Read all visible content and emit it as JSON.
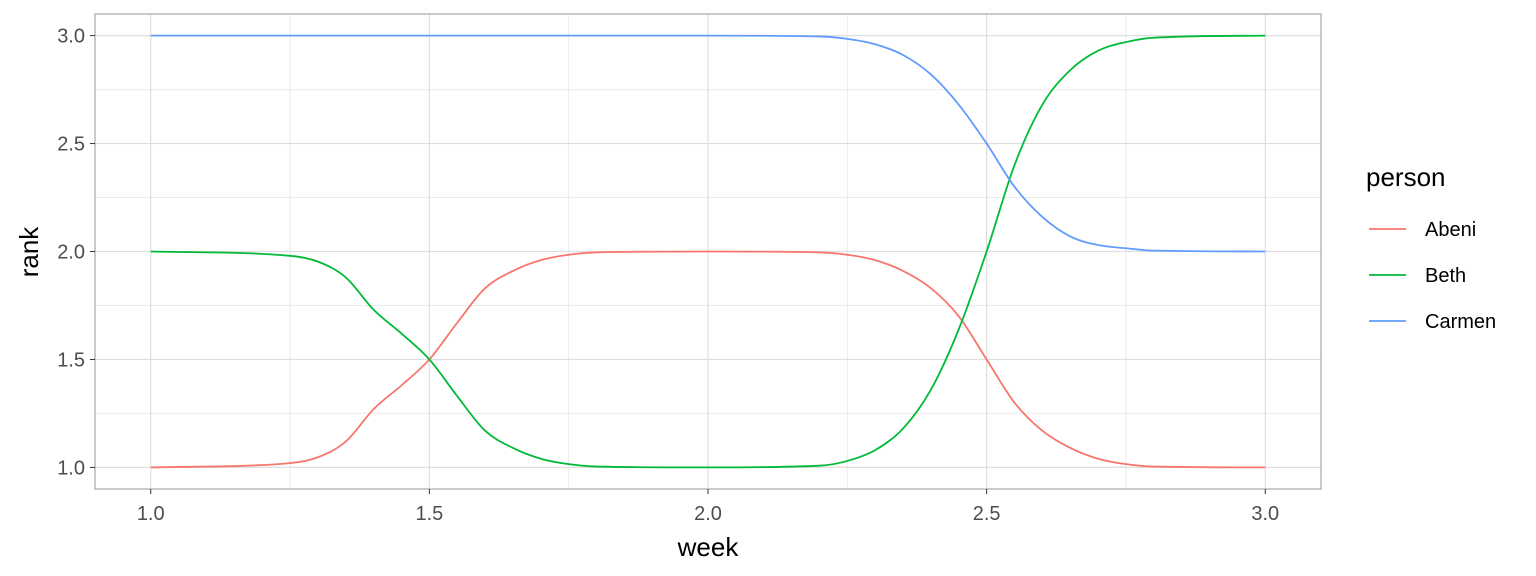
{
  "chart_data": {
    "type": "line",
    "title": "",
    "xlabel": "week",
    "ylabel": "rank",
    "xlim": [
      0.9,
      3.1
    ],
    "ylim": [
      0.9,
      3.1
    ],
    "xticks": [
      1.0,
      1.5,
      2.0,
      2.5,
      3.0
    ],
    "xtick_labels": [
      "1.0",
      "1.5",
      "2.0",
      "2.5",
      "3.0"
    ],
    "yticks": [
      1.0,
      1.5,
      2.0,
      2.5,
      3.0
    ],
    "ytick_labels": [
      "1.0",
      "1.5",
      "2.0",
      "2.5",
      "3.0"
    ],
    "grid": true,
    "legend": {
      "title": "person",
      "position": "right"
    },
    "series": [
      {
        "name": "Abeni",
        "color": "#F8766D",
        "x": [
          1.0,
          1.25,
          1.3,
          1.35,
          1.4,
          1.45,
          1.5,
          1.55,
          1.6,
          1.65,
          1.7,
          1.75,
          1.8,
          2.0,
          2.2,
          2.25,
          2.3,
          2.35,
          2.4,
          2.45,
          2.5,
          2.55,
          2.6,
          2.65,
          2.7,
          2.75,
          2.8,
          3.0
        ],
        "values": [
          1.0,
          1.02,
          1.047,
          1.12,
          1.27,
          1.38,
          1.5,
          1.67,
          1.83,
          1.91,
          1.96,
          1.985,
          1.996,
          2.0,
          1.996,
          1.985,
          1.96,
          1.91,
          1.83,
          1.7,
          1.5,
          1.3,
          1.17,
          1.09,
          1.04,
          1.015,
          1.004,
          1.0
        ]
      },
      {
        "name": "Beth",
        "color": "#00BA38",
        "x": [
          1.0,
          1.25,
          1.3,
          1.35,
          1.4,
          1.45,
          1.5,
          1.55,
          1.6,
          1.65,
          1.7,
          1.75,
          1.8,
          2.0,
          2.2,
          2.25,
          2.3,
          2.35,
          2.4,
          2.45,
          2.5,
          2.55,
          2.6,
          2.65,
          2.7,
          2.75,
          2.8,
          3.0
        ],
        "values": [
          2.0,
          1.98,
          1.953,
          1.88,
          1.73,
          1.62,
          1.5,
          1.33,
          1.17,
          1.09,
          1.04,
          1.015,
          1.004,
          1.0,
          1.008,
          1.03,
          1.08,
          1.18,
          1.36,
          1.64,
          2.0,
          2.4,
          2.68,
          2.84,
          2.93,
          2.97,
          2.99,
          3.0
        ]
      },
      {
        "name": "Carmen",
        "color": "#619CFF",
        "x": [
          1.0,
          2.0,
          2.2,
          2.25,
          2.3,
          2.35,
          2.4,
          2.45,
          2.5,
          2.55,
          2.6,
          2.65,
          2.7,
          2.75,
          2.8,
          3.0
        ],
        "values": [
          3.0,
          3.0,
          2.996,
          2.985,
          2.96,
          2.91,
          2.82,
          2.68,
          2.5,
          2.3,
          2.16,
          2.07,
          2.03,
          2.015,
          2.004,
          2.0
        ]
      }
    ]
  }
}
